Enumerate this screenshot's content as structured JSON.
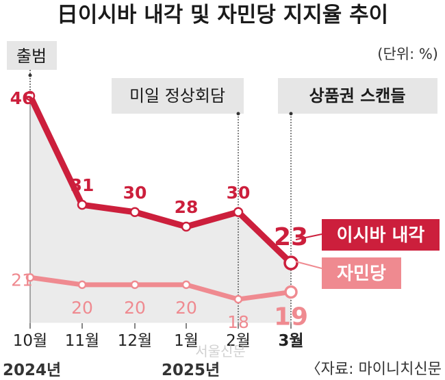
{
  "chart_data": {
    "type": "line",
    "title": "日이시바 내각 및 자민당 지지율 추이",
    "unit_label": "(단위: %)",
    "categories": [
      "10월",
      "11월",
      "12월",
      "1월",
      "2월",
      "3월"
    ],
    "year_labels": [
      "2024년",
      "2025년"
    ],
    "series": [
      {
        "name": "이시바 내각",
        "values": [
          46,
          31,
          30,
          28,
          30,
          23
        ],
        "color": "#cc1f3c"
      },
      {
        "name": "자민당",
        "values": [
          21,
          20,
          20,
          20,
          18,
          19
        ],
        "color": "#ef8a90"
      }
    ],
    "events": [
      {
        "label": "출범",
        "at": "10월"
      },
      {
        "label": "미일 정상회담",
        "at": "2월"
      },
      {
        "label": "상품권 스캔들",
        "at": "3월"
      }
    ],
    "source": "〈자료: 마이니치신문",
    "watermark": "서울신문",
    "ylim": [
      10,
      48
    ]
  }
}
